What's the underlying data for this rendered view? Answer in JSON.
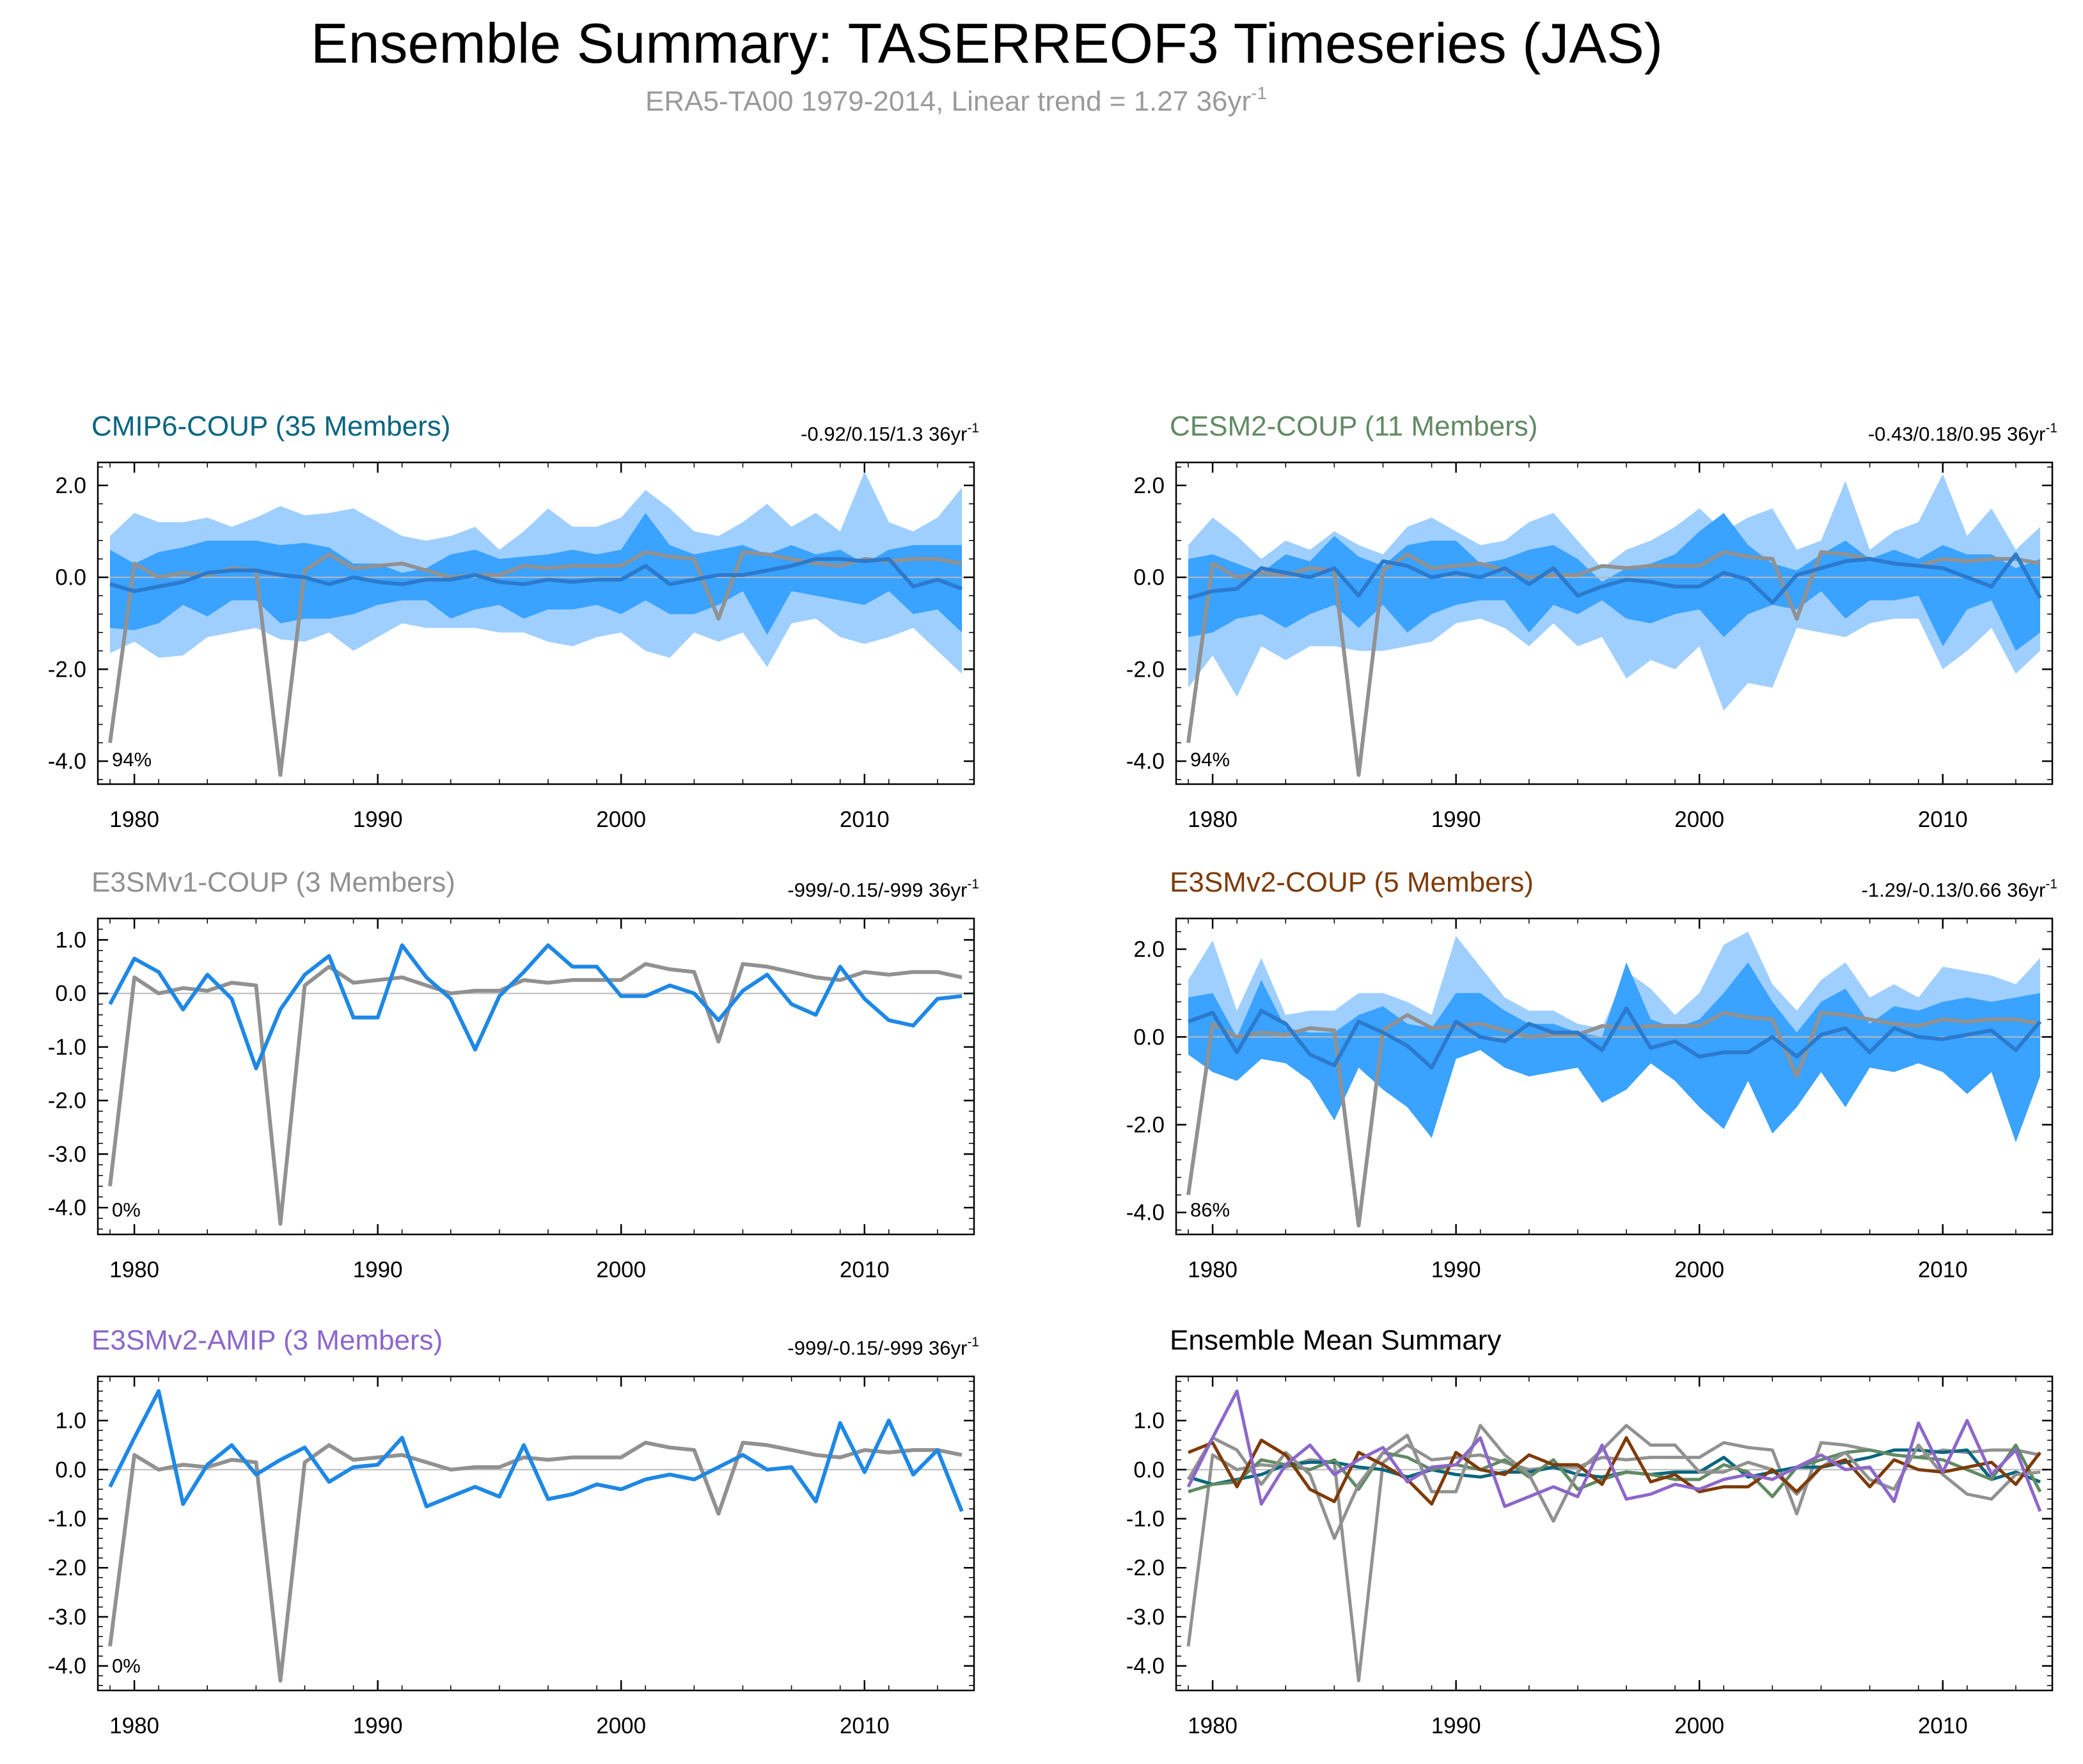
{
  "title": "Ensemble Summary: TASERREOF3 Timeseries (JAS)",
  "subtitle": {
    "main": "ERA5-TA00 1979-2014, Linear trend = 1.27 36yr",
    "sup": "-1"
  },
  "colors": {
    "obs": "#919191",
    "band_outer": "#9fcfff",
    "band_inner": "#3aa2ff",
    "ens_mean": "#2b7acd",
    "member_line": "#1e88e5",
    "cmip6": "#05657f",
    "cesm2": "#618a63",
    "e3smv1": "#919191",
    "e3smv2_coup": "#7e3b07",
    "e3smv2_amip": "#8c67ca",
    "subtitle": "#9a9a9a",
    "zero_line": "#b9b9b9"
  },
  "chart_data": {
    "type": "line",
    "x": [
      1979,
      1980,
      1981,
      1982,
      1983,
      1984,
      1985,
      1986,
      1987,
      1988,
      1989,
      1990,
      1991,
      1992,
      1993,
      1994,
      1995,
      1996,
      1997,
      1998,
      1999,
      2000,
      2001,
      2002,
      2003,
      2004,
      2005,
      2006,
      2007,
      2008,
      2009,
      2010,
      2011,
      2012,
      2013,
      2014
    ],
    "xlim": [
      1978.5,
      2014.5
    ],
    "xticks": [
      "1980",
      "1990",
      "2000",
      "2010"
    ],
    "observation": {
      "name": "ERA5-TA00",
      "values": [
        -3.6,
        0.3,
        0.0,
        0.1,
        0.05,
        0.2,
        0.15,
        -4.3,
        0.15,
        0.5,
        0.2,
        0.25,
        0.3,
        0.15,
        0.0,
        0.05,
        0.05,
        0.25,
        0.2,
        0.25,
        0.25,
        0.25,
        0.55,
        0.45,
        0.4,
        -0.9,
        0.55,
        0.5,
        0.4,
        0.3,
        0.25,
        0.4,
        0.35,
        0.4,
        0.4,
        0.3
      ]
    },
    "panels": [
      {
        "name": "CMIP6-COUP",
        "title": "CMIP6-COUP (35 Members)",
        "title_color": "cmip6",
        "trend": "-0.92/0.15/1.3 36yr",
        "trend_sup": "-1",
        "pct": "94%",
        "ylim": [
          -4.5,
          2.5
        ],
        "yticks": [
          "2.0",
          "0.0",
          "-2.0",
          "-4.0"
        ],
        "bands": {
          "outer_high": [
            0.9,
            1.4,
            1.2,
            1.2,
            1.3,
            1.1,
            1.3,
            1.55,
            1.35,
            1.4,
            1.5,
            1.2,
            0.9,
            0.8,
            0.9,
            1.1,
            0.6,
            1.0,
            1.5,
            1.1,
            1.1,
            1.3,
            1.9,
            1.5,
            1.0,
            0.9,
            1.2,
            1.6,
            1.1,
            1.4,
            1.0,
            2.3,
            1.2,
            1.0,
            1.3,
            1.95
          ],
          "inner_high": [
            0.6,
            0.3,
            0.55,
            0.65,
            0.8,
            0.8,
            0.8,
            0.7,
            0.75,
            0.65,
            0.3,
            0.3,
            0.1,
            0.2,
            0.5,
            0.6,
            0.4,
            0.45,
            0.5,
            0.6,
            0.5,
            0.6,
            1.4,
            0.7,
            0.5,
            0.6,
            0.7,
            0.5,
            0.7,
            0.5,
            0.6,
            0.3,
            0.6,
            0.7,
            0.7,
            0.7
          ],
          "inner_low": [
            -1.1,
            -1.15,
            -1.0,
            -0.6,
            -0.85,
            -0.5,
            -0.5,
            -1.0,
            -0.9,
            -0.9,
            -0.8,
            -0.6,
            -0.5,
            -0.5,
            -0.9,
            -0.7,
            -0.6,
            -0.9,
            -0.7,
            -0.7,
            -0.6,
            -0.8,
            -0.5,
            -0.8,
            -0.8,
            -0.6,
            -0.3,
            -1.25,
            -0.3,
            -0.4,
            -0.5,
            -0.6,
            -0.3,
            -0.8,
            -0.7,
            -1.2
          ],
          "outer_low": [
            -1.65,
            -1.4,
            -1.75,
            -1.7,
            -1.3,
            -1.2,
            -1.1,
            -1.35,
            -1.4,
            -1.2,
            -1.6,
            -1.3,
            -1.0,
            -1.1,
            -1.1,
            -1.1,
            -1.2,
            -1.2,
            -1.4,
            -1.5,
            -1.3,
            -1.2,
            -1.6,
            -1.75,
            -1.2,
            -1.4,
            -1.2,
            -1.95,
            -1.0,
            -0.9,
            -1.3,
            -1.45,
            -1.3,
            -1.1,
            -1.6,
            -2.1
          ]
        },
        "mean": {
          "color": "ens_mean",
          "values": [
            -0.15,
            -0.3,
            -0.2,
            -0.1,
            0.1,
            0.15,
            0.15,
            0.05,
            0.0,
            -0.15,
            0.0,
            -0.1,
            -0.15,
            -0.05,
            -0.05,
            0.05,
            -0.1,
            -0.15,
            -0.05,
            -0.1,
            -0.05,
            -0.05,
            0.25,
            -0.15,
            -0.05,
            0.05,
            0.05,
            0.15,
            0.25,
            0.4,
            0.4,
            0.35,
            0.4,
            -0.2,
            -0.05,
            -0.25
          ]
        }
      },
      {
        "name": "CESM2-COUP",
        "title": "CESM2-COUP (11 Members)",
        "title_color": "cesm2",
        "trend": "-0.43/0.18/0.95 36yr",
        "trend_sup": "-1",
        "pct": "94%",
        "ylim": [
          -4.5,
          2.5
        ],
        "yticks": [
          "2.0",
          "0.0",
          "-2.0",
          "-4.0"
        ],
        "bands": {
          "outer_high": [
            0.7,
            1.3,
            0.9,
            0.4,
            0.8,
            0.6,
            1.0,
            0.7,
            0.5,
            1.1,
            1.3,
            1.0,
            0.7,
            0.8,
            1.2,
            1.4,
            0.8,
            0.2,
            0.6,
            0.8,
            1.1,
            1.5,
            1.0,
            1.3,
            1.5,
            0.6,
            0.8,
            2.1,
            0.6,
            1.0,
            1.2,
            2.25,
            0.9,
            1.5,
            0.6,
            1.1
          ],
          "inner_high": [
            0.4,
            0.5,
            0.3,
            0.1,
            0.5,
            0.35,
            0.9,
            0.45,
            0.25,
            0.7,
            0.8,
            0.8,
            0.3,
            0.4,
            0.6,
            0.7,
            0.4,
            -0.1,
            0.2,
            0.3,
            0.5,
            1.0,
            1.4,
            0.7,
            0.3,
            0.15,
            0.5,
            0.8,
            0.4,
            0.6,
            0.4,
            0.7,
            0.5,
            0.5,
            0.2,
            0.4
          ],
          "inner_low": [
            -1.3,
            -1.2,
            -0.9,
            -0.8,
            -1.1,
            -0.8,
            -0.6,
            -1.1,
            -0.6,
            -1.2,
            -0.8,
            -0.6,
            -0.5,
            -0.5,
            -1.2,
            -0.6,
            -0.8,
            -0.5,
            -0.9,
            -1.0,
            -0.8,
            -0.7,
            -1.3,
            -0.8,
            -0.6,
            -0.7,
            -0.3,
            -0.9,
            -0.5,
            -0.5,
            -0.4,
            -1.5,
            -0.7,
            -0.5,
            -1.6,
            -1.2
          ],
          "outer_low": [
            -2.4,
            -1.7,
            -2.6,
            -1.5,
            -1.8,
            -1.5,
            -1.5,
            -1.6,
            -1.6,
            -1.5,
            -1.4,
            -1.0,
            -0.9,
            -1.1,
            -1.5,
            -1.0,
            -1.5,
            -1.3,
            -2.2,
            -1.8,
            -2.0,
            -1.5,
            -2.9,
            -2.3,
            -2.4,
            -1.1,
            -1.2,
            -1.3,
            -1.0,
            -0.9,
            -0.9,
            -2.0,
            -1.6,
            -1.1,
            -2.1,
            -1.6
          ]
        },
        "mean": {
          "color": "ens_mean",
          "values": [
            -0.45,
            -0.3,
            -0.25,
            0.2,
            0.1,
            0.0,
            0.2,
            -0.4,
            0.35,
            0.25,
            0.0,
            0.1,
            0.0,
            0.2,
            -0.15,
            0.2,
            -0.4,
            -0.2,
            -0.05,
            -0.1,
            -0.2,
            -0.2,
            0.1,
            -0.05,
            -0.55,
            0.05,
            0.2,
            0.35,
            0.4,
            0.3,
            0.25,
            0.2,
            0.0,
            -0.2,
            0.5,
            -0.45
          ]
        }
      },
      {
        "name": "E3SMv1-COUP",
        "title": "E3SMv1-COUP (3 Members)",
        "title_color": "e3smv1",
        "trend": "-999/-0.15/-999 36yr",
        "trend_sup": "-1",
        "pct": "0%",
        "ylim": [
          -4.5,
          1.4
        ],
        "yticks": [
          "1.0",
          "0.0",
          "-1.0",
          "-2.0",
          "-3.0",
          "-4.0"
        ],
        "mean": {
          "color": "member_line",
          "values": [
            -0.2,
            0.65,
            0.4,
            -0.3,
            0.35,
            -0.1,
            -1.4,
            -0.3,
            0.35,
            0.7,
            -0.45,
            -0.45,
            0.9,
            0.3,
            -0.1,
            -1.05,
            -0.05,
            0.4,
            0.9,
            0.5,
            0.5,
            -0.05,
            -0.05,
            0.15,
            0.0,
            -0.5,
            0.05,
            0.35,
            -0.2,
            -0.4,
            0.5,
            -0.1,
            -0.5,
            -0.6,
            -0.1,
            -0.05
          ]
        }
      },
      {
        "name": "E3SMv2-COUP",
        "title": "E3SMv2-COUP (5 Members)",
        "title_color": "e3smv2_coup",
        "trend": "-1.29/-0.13/0.66 36yr",
        "trend_sup": "-1",
        "pct": "86%",
        "ylim": [
          -4.5,
          2.7
        ],
        "yticks": [
          "2.0",
          "0.0",
          "-2.0",
          "-4.0"
        ],
        "bands": {
          "outer_high": [
            1.3,
            2.2,
            0.6,
            1.8,
            0.5,
            0.6,
            0.6,
            1.0,
            1.0,
            0.8,
            0.5,
            2.3,
            1.6,
            0.9,
            0.6,
            0.6,
            0.3,
            0.2,
            1.5,
            1.1,
            0.5,
            1.0,
            2.1,
            2.4,
            1.2,
            0.6,
            1.3,
            1.7,
            0.9,
            1.2,
            0.9,
            1.6,
            1.5,
            1.4,
            1.2,
            1.8
          ],
          "inner_high": [
            0.9,
            1.0,
            0.0,
            1.3,
            0.2,
            0.1,
            0.1,
            0.5,
            0.7,
            0.3,
            0.2,
            1.0,
            1.0,
            0.6,
            0.3,
            0.3,
            0.1,
            0.0,
            1.7,
            0.4,
            0.2,
            0.4,
            1.0,
            1.7,
            0.8,
            0.1,
            0.8,
            1.1,
            0.3,
            0.7,
            0.6,
            0.8,
            0.9,
            0.8,
            0.9,
            1.0
          ],
          "inner_low": [
            -0.4,
            -0.8,
            -1.0,
            -0.5,
            -0.6,
            -1.0,
            -1.9,
            -0.7,
            -1.2,
            -1.6,
            -2.3,
            -0.5,
            -0.3,
            -0.7,
            -0.9,
            -0.8,
            -0.7,
            -1.5,
            -1.2,
            -0.6,
            -1.0,
            -1.6,
            -2.1,
            -1.0,
            -2.2,
            -1.6,
            -0.8,
            -1.6,
            -0.7,
            -0.8,
            -0.6,
            -0.8,
            -1.3,
            -0.8,
            -2.4,
            -0.9
          ],
          "outer_low": [
            -0.4,
            -0.8,
            -1.0,
            -0.5,
            -0.6,
            -1.0,
            -1.9,
            -0.7,
            -1.2,
            -1.6,
            -2.3,
            -0.5,
            -0.3,
            -0.7,
            -0.9,
            -0.8,
            -0.7,
            -1.5,
            -1.2,
            -0.6,
            -1.0,
            -1.6,
            -2.1,
            -1.0,
            -2.2,
            -1.6,
            -0.8,
            -1.6,
            -0.7,
            -0.8,
            -0.6,
            -0.8,
            -1.3,
            -0.8,
            -2.4,
            -0.9
          ]
        },
        "mean": {
          "color": "ens_mean",
          "values": [
            0.35,
            0.55,
            -0.35,
            0.6,
            0.3,
            -0.4,
            -0.65,
            0.35,
            0.1,
            -0.2,
            -0.7,
            0.35,
            0.0,
            -0.1,
            0.3,
            0.1,
            0.1,
            -0.3,
            0.65,
            -0.25,
            -0.1,
            -0.45,
            -0.35,
            -0.35,
            0.0,
            -0.45,
            0.05,
            0.2,
            -0.35,
            0.2,
            0.0,
            -0.05,
            0.05,
            0.15,
            -0.3,
            0.35
          ]
        }
      },
      {
        "name": "E3SMv2-AMIP",
        "title": "E3SMv2-AMIP (3 Members)",
        "title_color": "e3smv2_amip",
        "trend": "-999/-0.15/-999 36yr",
        "trend_sup": "-1",
        "pct": "0%",
        "ylim": [
          -4.5,
          1.9
        ],
        "yticks": [
          "1.0",
          "0.0",
          "-1.0",
          "-2.0",
          "-3.0",
          "-4.0"
        ],
        "mean": {
          "color": "member_line",
          "values": [
            -0.35,
            0.65,
            1.6,
            -0.7,
            0.1,
            0.5,
            -0.1,
            0.2,
            0.45,
            -0.25,
            0.05,
            0.1,
            0.65,
            -0.75,
            -0.55,
            -0.35,
            -0.55,
            0.5,
            -0.6,
            -0.5,
            -0.3,
            -0.4,
            -0.2,
            -0.1,
            -0.2,
            0.05,
            0.3,
            0.0,
            0.05,
            -0.65,
            0.95,
            -0.05,
            1.0,
            -0.1,
            0.4,
            -0.85
          ]
        }
      },
      {
        "name": "Ensemble Mean Summary",
        "title": "Ensemble Mean Summary",
        "title_color": "#000000",
        "ylim": [
          -4.5,
          1.9
        ],
        "yticks": [
          "1.0",
          "0.0",
          "-1.0",
          "-2.0",
          "-3.0",
          "-4.0"
        ],
        "summary": true
      }
    ]
  }
}
